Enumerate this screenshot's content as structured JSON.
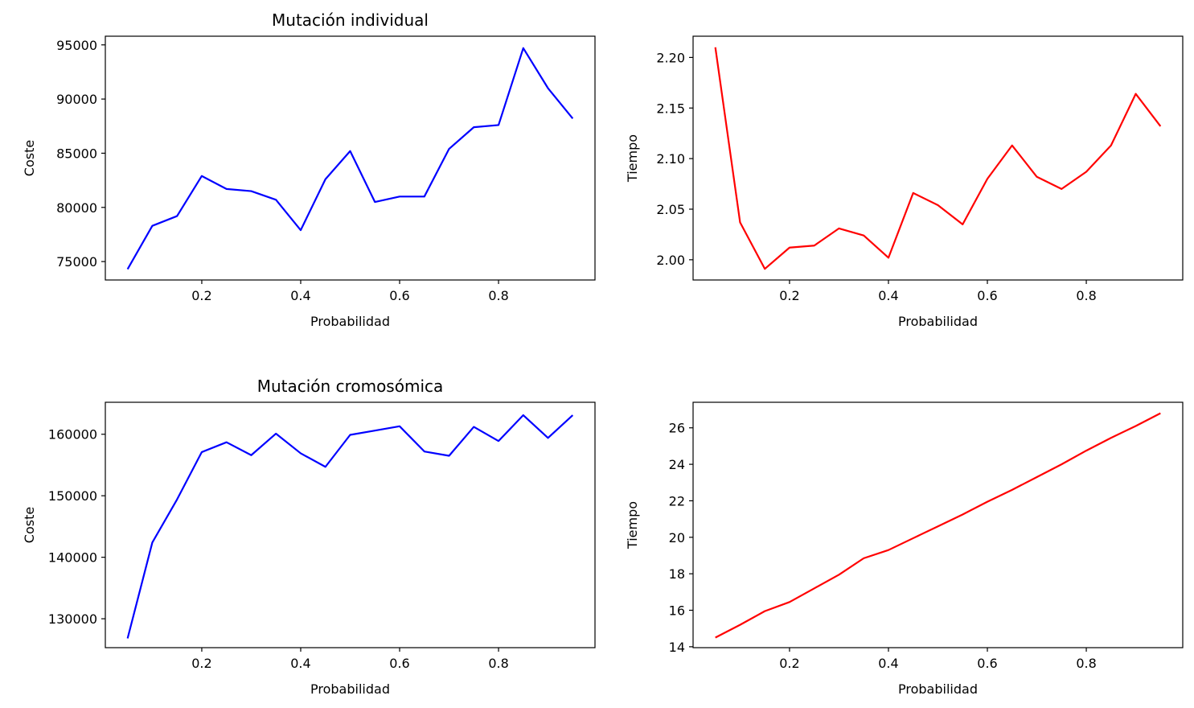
{
  "chart_data": [
    {
      "type": "line",
      "title": "Mutación individual",
      "xlabel": "Probabilidad",
      "ylabel": "Coste",
      "xlim": [
        0.005,
        0.995
      ],
      "ylim": [
        73300,
        95800
      ],
      "xticks": [
        0.2,
        0.4,
        0.6,
        0.8
      ],
      "yticks": [
        75000,
        80000,
        85000,
        90000,
        95000
      ],
      "grid": false,
      "series": [
        {
          "color": "#0000ff",
          "x": [
            0.05,
            0.1,
            0.15,
            0.2,
            0.25,
            0.3,
            0.35,
            0.4,
            0.45,
            0.5,
            0.55,
            0.6,
            0.65,
            0.7,
            0.75,
            0.8,
            0.85,
            0.9,
            0.95
          ],
          "y": [
            74300,
            78300,
            79200,
            82900,
            81700,
            81500,
            80700,
            77900,
            82600,
            85200,
            80500,
            81000,
            81000,
            85400,
            87400,
            87600,
            94700,
            91000,
            88200
          ]
        }
      ]
    },
    {
      "type": "line",
      "title": "",
      "xlabel": "Probabilidad",
      "ylabel": "Tiempo",
      "xlim": [
        0.005,
        0.995
      ],
      "ylim": [
        1.98,
        2.221
      ],
      "xticks": [
        0.2,
        0.4,
        0.6,
        0.8
      ],
      "yticks": [
        2.0,
        2.05,
        2.1,
        2.15,
        2.2
      ],
      "ytick_labels": [
        "2.00",
        "2.05",
        "2.10",
        "2.15",
        "2.20"
      ],
      "grid": false,
      "series": [
        {
          "color": "#ff0000",
          "x": [
            0.05,
            0.1,
            0.15,
            0.2,
            0.25,
            0.3,
            0.35,
            0.4,
            0.45,
            0.5,
            0.55,
            0.6,
            0.65,
            0.7,
            0.75,
            0.8,
            0.85,
            0.9,
            0.95
          ],
          "y": [
            2.21,
            2.037,
            1.991,
            2.012,
            2.014,
            2.031,
            2.024,
            2.002,
            2.066,
            2.054,
            2.035,
            2.08,
            2.113,
            2.082,
            2.07,
            2.087,
            2.113,
            2.164,
            2.132
          ]
        }
      ]
    },
    {
      "type": "line",
      "title": "Mutación cromosómica",
      "xlabel": "Probabilidad",
      "ylabel": "Coste",
      "xlim": [
        0.005,
        0.995
      ],
      "ylim": [
        125300,
        165200
      ],
      "xticks": [
        0.2,
        0.4,
        0.6,
        0.8
      ],
      "yticks": [
        130000,
        140000,
        150000,
        160000
      ],
      "grid": false,
      "series": [
        {
          "color": "#0000ff",
          "x": [
            0.05,
            0.1,
            0.15,
            0.2,
            0.25,
            0.3,
            0.35,
            0.4,
            0.45,
            0.5,
            0.55,
            0.6,
            0.65,
            0.7,
            0.75,
            0.8,
            0.85,
            0.9,
            0.95
          ],
          "y": [
            126800,
            142400,
            149400,
            157100,
            158700,
            156600,
            160100,
            156900,
            154700,
            159900,
            160600,
            161300,
            157200,
            156500,
            161200,
            158900,
            163100,
            159400,
            163100
          ]
        }
      ]
    },
    {
      "type": "line",
      "title": "",
      "xlabel": "Probabilidad",
      "ylabel": "Tiempo",
      "xlim": [
        0.005,
        0.995
      ],
      "ylim": [
        13.95,
        27.4
      ],
      "xticks": [
        0.2,
        0.4,
        0.6,
        0.8
      ],
      "yticks": [
        14,
        16,
        18,
        20,
        22,
        24,
        26
      ],
      "grid": false,
      "series": [
        {
          "color": "#ff0000",
          "x": [
            0.05,
            0.1,
            0.15,
            0.2,
            0.25,
            0.3,
            0.35,
            0.4,
            0.45,
            0.5,
            0.55,
            0.6,
            0.65,
            0.7,
            0.75,
            0.8,
            0.85,
            0.9,
            0.95
          ],
          "y": [
            14.5,
            15.2,
            15.95,
            16.45,
            17.2,
            17.95,
            18.85,
            19.3,
            19.95,
            20.6,
            21.25,
            21.95,
            22.6,
            23.3,
            24.0,
            24.75,
            25.45,
            26.1,
            26.8
          ]
        }
      ]
    }
  ]
}
